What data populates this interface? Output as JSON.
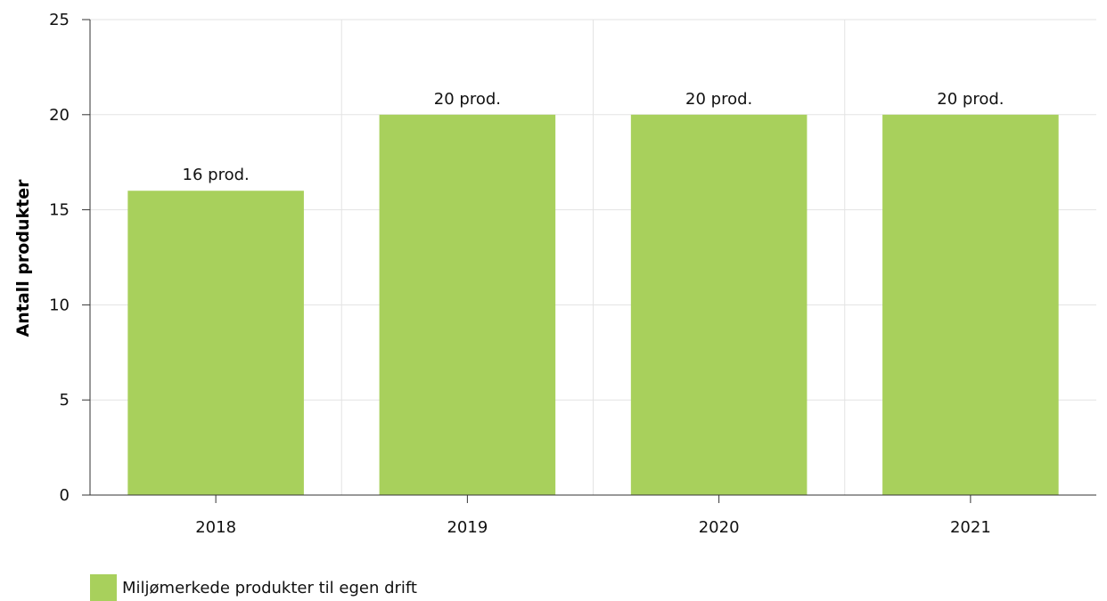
{
  "chart_data": {
    "type": "bar",
    "title": "",
    "ylabel": "Antall produkter",
    "xlabel": "",
    "categories": [
      "2018",
      "2019",
      "2020",
      "2021"
    ],
    "ylim": [
      0,
      25
    ],
    "yticks": [
      0,
      5,
      10,
      15,
      20,
      25
    ],
    "grid": true,
    "legend_position": "bottom-left",
    "series": [
      {
        "name": "Miljømerkede produkter til egen drift",
        "values": [
          16,
          20,
          20,
          20
        ],
        "data_labels": [
          "16 prod.",
          "20 prod.",
          "20 prod.",
          "20 prod."
        ],
        "color": "#a8d05c"
      }
    ]
  }
}
